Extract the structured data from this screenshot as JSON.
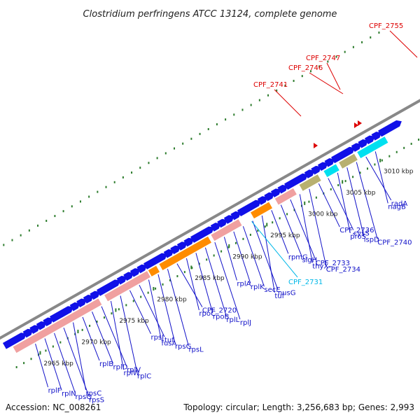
{
  "title": "Clostridium perfringens ATCC 13124, complete genome",
  "footer": {
    "accession": "Accession: NC_008261",
    "topology": "Topology: circular; Length: 3,256,683 bp; Genes: 2,993"
  },
  "colors": {
    "genome_line": "#888888",
    "forward_gene": "#1010e8",
    "rrna": "#f0a0a0",
    "operon": "#ff8c00",
    "tick": "#2e7d2e",
    "label_line": "#1010c8",
    "highlight_red": "#dd0000",
    "highlight_cyan": "#00b8e8",
    "khaki": "#b8b070",
    "cyan_box": "#00e0f0"
  },
  "kbp_marks": [
    {
      "label": "2965 kbp"
    },
    {
      "label": "2970 kbp"
    },
    {
      "label": "2975 kbp"
    },
    {
      "label": "2980 kbp"
    },
    {
      "label": "2985 kbp"
    },
    {
      "label": "2990 kbp"
    },
    {
      "label": "2995 kbp"
    },
    {
      "label": "3000 kbp"
    },
    {
      "label": "3005 kbp"
    },
    {
      "label": "3010 kbp"
    }
  ],
  "blue_labels": [
    {
      "text": "rplF"
    },
    {
      "text": "rplN"
    },
    {
      "text": "rpsQ"
    },
    {
      "text": "rpsS"
    },
    {
      "text": "rpsC"
    },
    {
      "text": "rplB"
    },
    {
      "text": "rplD"
    },
    {
      "text": "rplV"
    },
    {
      "text": "rplW"
    },
    {
      "text": "rplC"
    },
    {
      "text": "rpsJ"
    },
    {
      "text": "tuf"
    },
    {
      "text": "fusA"
    },
    {
      "text": "rpsG"
    },
    {
      "text": "rpsL"
    },
    {
      "text": "CPF_2720"
    },
    {
      "text": "rpoC"
    },
    {
      "text": "rpoB"
    },
    {
      "text": "rplL"
    },
    {
      "text": "rplJ"
    },
    {
      "text": "rplA"
    },
    {
      "text": "rplK"
    },
    {
      "text": "secE"
    },
    {
      "text": "nusG"
    },
    {
      "text": "tuf"
    },
    {
      "text": "rpmG"
    },
    {
      "text": "sigH"
    },
    {
      "text": "CPF_2733"
    },
    {
      "text": "thyX"
    },
    {
      "text": "CPF_2734"
    },
    {
      "text": "CPF_2736"
    },
    {
      "text": "cysS"
    },
    {
      "text": "proS"
    },
    {
      "text": "ispD"
    },
    {
      "text": "CPF_2740"
    },
    {
      "text": "radA"
    },
    {
      "text": "nagB"
    }
  ],
  "cyan_labels": [
    {
      "text": "CPF_2731"
    }
  ],
  "red_labels": [
    {
      "text": "CPF_2741"
    },
    {
      "text": "CPF_2746"
    },
    {
      "text": "CPF_2747"
    },
    {
      "text": "CPF_2755"
    }
  ]
}
